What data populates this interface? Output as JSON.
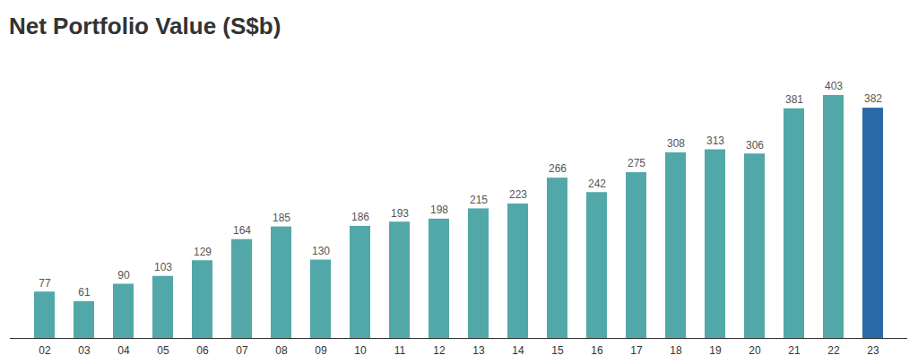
{
  "chart_data": {
    "type": "bar",
    "title": "Net Portfolio Value (S$b)",
    "categories": [
      "02",
      "03",
      "04",
      "05",
      "06",
      "07",
      "08",
      "09",
      "10",
      "11",
      "12",
      "13",
      "14",
      "15",
      "16",
      "17",
      "18",
      "19",
      "20",
      "21",
      "22",
      "23"
    ],
    "values": [
      77,
      61,
      90,
      103,
      129,
      164,
      185,
      130,
      186,
      193,
      198,
      215,
      223,
      266,
      242,
      275,
      308,
      313,
      306,
      381,
      403,
      382
    ],
    "colors": [
      "#52a8a8",
      "#52a8a8",
      "#52a8a8",
      "#52a8a8",
      "#52a8a8",
      "#52a8a8",
      "#52a8a8",
      "#52a8a8",
      "#52a8a8",
      "#52a8a8",
      "#52a8a8",
      "#52a8a8",
      "#52a8a8",
      "#52a8a8",
      "#52a8a8",
      "#52a8a8",
      "#52a8a8",
      "#52a8a8",
      "#52a8a8",
      "#52a8a8",
      "#52a8a8",
      "#2a6aa8"
    ],
    "ylim": [
      0,
      403
    ],
    "yticks": [],
    "grid": false,
    "data_labels": true,
    "tick_labels": "x"
  }
}
